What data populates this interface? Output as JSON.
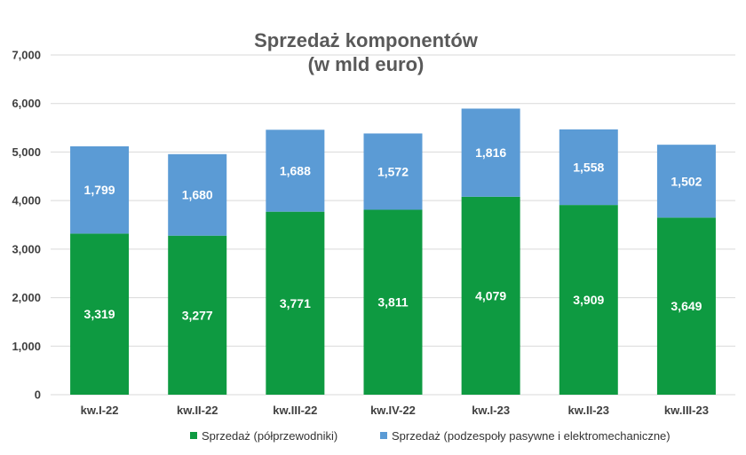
{
  "chart_data": {
    "type": "bar",
    "stacked": true,
    "title_lines": [
      "Sprzedaż komponentów",
      "(w mld euro)"
    ],
    "categories": [
      "kw.I-22",
      "kw.II-22",
      "kw.III-22",
      "kw.IV-22",
      "kw.I-23",
      "kw.II-23",
      "kw.III-23"
    ],
    "series": [
      {
        "name": "Sprzedaż (półprzewodniki)",
        "color": "#0e9a41",
        "values": [
          3319,
          3277,
          3771,
          3811,
          4079,
          3909,
          3649
        ],
        "labels": [
          "3,319",
          "3,277",
          "3,771",
          "3,811",
          "4,079",
          "3,909",
          "3,649"
        ]
      },
      {
        "name": "Sprzedaż (podzespoły pasywne i elektromechaniczne)",
        "color": "#5b9bd5",
        "values": [
          1799,
          1680,
          1688,
          1572,
          1816,
          1558,
          1502
        ],
        "labels": [
          "1,799",
          "1,680",
          "1,688",
          "1,572",
          "1,816",
          "1,558",
          "1,502"
        ]
      }
    ],
    "ylim": [
      0,
      7000
    ],
    "yticks": [
      0,
      1000,
      2000,
      3000,
      4000,
      5000,
      6000,
      7000
    ],
    "ytick_labels": [
      "0",
      "1,000",
      "2,000",
      "3,000",
      "4,000",
      "5,000",
      "6,000",
      "7,000"
    ],
    "grid": true,
    "legend_position": "bottom"
  }
}
